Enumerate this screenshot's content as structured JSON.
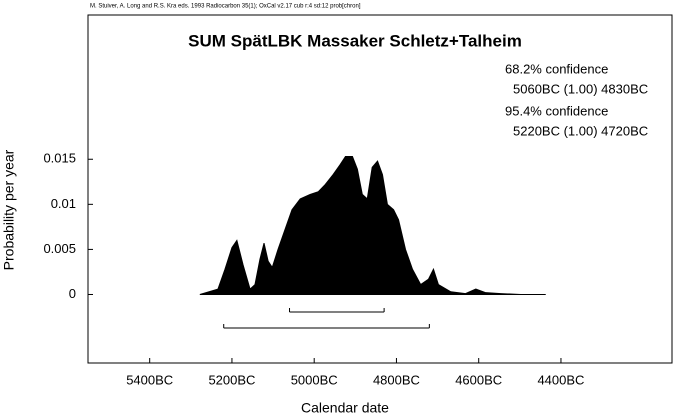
{
  "chart_data": {
    "type": "area",
    "header": "M. Stuiver, A. Long and R.S. Kra eds. 1993 Radiocarbon 35(1); OxCal v2.17 cub r:4 sd:12 prob[chron]",
    "title": "SUM SpätLBK Massaker Schletz+Talheim",
    "x_label": "Calendar date",
    "y_label": "Probability per year",
    "color": "#000000",
    "x": [
      -5278,
      -5234,
      -5217,
      -5200,
      -5188,
      -5173,
      -5156,
      -5144,
      -5132,
      -5122,
      -5112,
      -5102,
      -5088,
      -5071,
      -5054,
      -5034,
      -5010,
      -4990,
      -4973,
      -4954,
      -4937,
      -4924,
      -4907,
      -4895,
      -4883,
      -4871,
      -4859,
      -4846,
      -4834,
      -4822,
      -4807,
      -4795,
      -4778,
      -4761,
      -4741,
      -4722,
      -4710,
      -4698,
      -4668,
      -4632,
      -4607,
      -4583,
      -4546,
      -4498,
      -4437
    ],
    "values": [
      0,
      0.0006,
      0.0028,
      0.0052,
      0.006,
      0.0033,
      0.0006,
      0.0011,
      0.0039,
      0.0057,
      0.0037,
      0.003,
      0.005,
      0.0072,
      0.0094,
      0.0106,
      0.0111,
      0.0114,
      0.0122,
      0.0133,
      0.0144,
      0.0153,
      0.0153,
      0.0139,
      0.0111,
      0.0106,
      0.0141,
      0.0148,
      0.0133,
      0.01,
      0.0094,
      0.0083,
      0.005,
      0.0028,
      0.0011,
      0.0017,
      0.0028,
      0.0011,
      0.0003,
      0.0001,
      0.0006,
      0.0002,
      0.0001,
      0,
      0
    ],
    "xlim": [
      -5550,
      -4130
    ],
    "ylim": [
      -0.0076,
      0.031
    ],
    "xticks": [
      {
        "value": -5400,
        "label": "5400BC"
      },
      {
        "value": -5200,
        "label": "5200BC"
      },
      {
        "value": -5000,
        "label": "5000BC"
      },
      {
        "value": -4800,
        "label": "4800BC"
      },
      {
        "value": -4600,
        "label": "4600BC"
      },
      {
        "value": -4400,
        "label": "4400BC"
      }
    ],
    "yticks": [
      0,
      0.005,
      0.01,
      0.015
    ],
    "ranges": [
      {
        "name": "68.2% confidence",
        "label": "5060BC (1.00) 4830BC",
        "from": -5060,
        "to": -4830
      },
      {
        "name": "95.4% confidence",
        "label": "5220BC (1.00) 4720BC",
        "from": -5220,
        "to": -4720
      }
    ]
  }
}
